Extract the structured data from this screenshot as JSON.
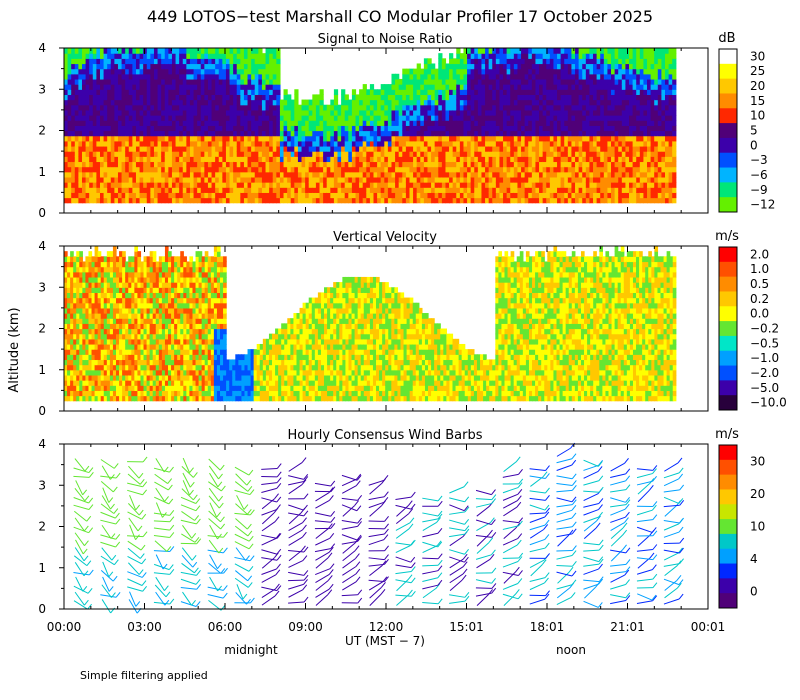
{
  "title": "449 LOTOS−test Marshall CO Modular Profiler 17 October 2025",
  "y_axis_label": "Altitude (km)",
  "x_axis_label": "UT  (MST − 7)",
  "x_ticks": [
    "00:00",
    "03:00",
    "06:00",
    "09:00",
    "12:00",
    "15:01",
    "18:01",
    "21:01",
    "00:01"
  ],
  "local_time_labels": {
    "midnight": "midnight",
    "noon": "noon"
  },
  "footnote": "Simple filtering applied",
  "chart_data": [
    {
      "type": "heatmap",
      "title": "Signal to Noise Ratio",
      "ylabel": "Altitude (km)",
      "ylim": [
        0,
        4
      ],
      "y_ticks": [
        "0",
        "1",
        "2",
        "3",
        "4"
      ],
      "x_range_hours": [
        0,
        24
      ],
      "data_extent_hours": [
        0,
        22.8
      ],
      "colorbar": {
        "unit": "dB",
        "labels": [
          "30",
          "25",
          "20",
          "15",
          "10",
          "5",
          "0",
          "−3",
          "−6",
          "−9",
          "−12"
        ],
        "colors": [
          "#ffffff",
          "#ffff00",
          "#ffc800",
          "#ff8c00",
          "#ff2800",
          "#500078",
          "#3c00aa",
          "#0050ff",
          "#00b4ff",
          "#00e678",
          "#64f000"
        ]
      },
      "description_rows": [
        {
          "altitude_km": 3.8,
          "dominant": "#64f000"
        },
        {
          "altitude_km": 3.0,
          "dominant": "#3c00aa"
        },
        {
          "altitude_km": 2.0,
          "dominant": "#500078"
        },
        {
          "altitude_km": 1.0,
          "dominant": "#ff2800"
        }
      ]
    },
    {
      "type": "heatmap",
      "title": "Vertical Velocity",
      "ylabel": "Altitude (km)",
      "ylim": [
        0,
        4
      ],
      "y_ticks": [
        "0",
        "1",
        "2",
        "3",
        "4"
      ],
      "x_range_hours": [
        0,
        24
      ],
      "data_extent_hours": [
        0,
        22.8
      ],
      "colorbar": {
        "unit": "m/s",
        "labels": [
          "2.0",
          "1.0",
          "0.5",
          "0.2",
          "0.0",
          "−0.2",
          "−0.5",
          "−1.0",
          "−2.0",
          "−5.0",
          "−10.0"
        ],
        "colors": [
          "#ff0000",
          "#ff5000",
          "#ff8c00",
          "#ffc800",
          "#ffff00",
          "#64e632",
          "#00e6c8",
          "#00a0ff",
          "#0050ff",
          "#3c00aa",
          "#28003c"
        ]
      }
    },
    {
      "type": "scatter",
      "title": "Hourly Consensus Wind Barbs",
      "ylabel": "Altitude (km)",
      "ylim": [
        0,
        4
      ],
      "y_ticks": [
        "0",
        "1",
        "2",
        "3",
        "4"
      ],
      "x_range_hours": [
        0,
        24
      ],
      "colorbar": {
        "unit": "m/s",
        "labels": [
          "30",
          "20",
          "10",
          "4",
          "0"
        ],
        "colors": [
          "#ff0000",
          "#ff5000",
          "#ff8c00",
          "#ffc800",
          "#c8e600",
          "#64e632",
          "#00c8c8",
          "#00a0ff",
          "#0028ff",
          "#3c00aa",
          "#500078"
        ]
      },
      "barb_columns_hours": [
        0.5,
        1.5,
        2.5,
        3.5,
        4.5,
        5.5,
        6.5,
        7.5,
        8.5,
        9.5,
        10.5,
        11.5,
        12.5,
        13.5,
        14.5,
        15.5,
        16.5,
        17.5,
        18.5,
        19.5,
        20.5,
        21.5,
        22.5
      ],
      "barb_top_km": [
        3.6,
        3.6,
        3.6,
        3.6,
        3.6,
        3.6,
        3.5,
        3.5,
        3.5,
        3.2,
        3.3,
        3.2,
        2.8,
        2.8,
        3.0,
        3.0,
        3.4,
        3.5,
        3.9,
        3.6,
        3.5,
        3.5,
        3.5
      ]
    }
  ]
}
